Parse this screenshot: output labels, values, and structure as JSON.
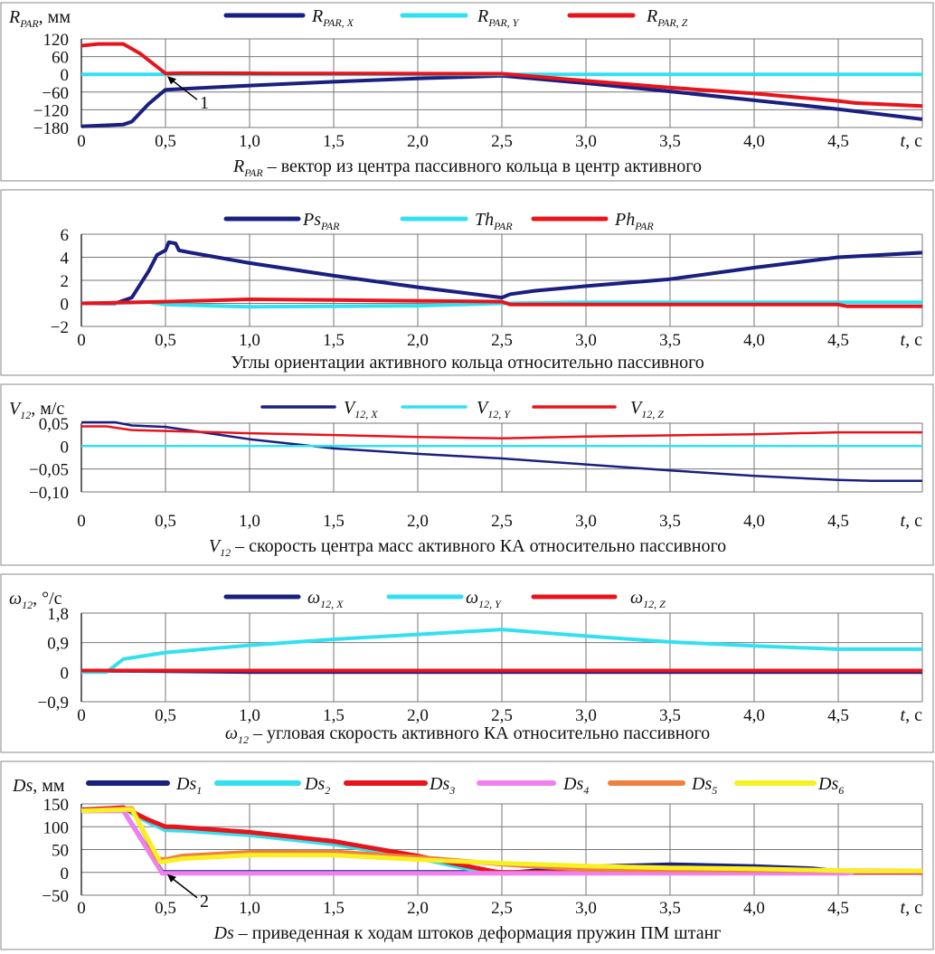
{
  "colors": {
    "navy": "#1a1f80",
    "cyan": "#33e0f0",
    "red": "#e8141c",
    "pink": "#f080f0",
    "orange": "#f08040",
    "yellow": "#f8f020"
  },
  "chart_data": [
    {
      "type": "line",
      "ylabel": {
        "main": "R",
        "sub": "PAR",
        "rest": ", мм"
      },
      "xlabel": {
        "main": "t",
        "rest": ", с"
      },
      "caption": {
        "main": "R",
        "sub": "PAR",
        "rest": " – вектор из центра пассивного кольца в центр активного"
      },
      "xlim": [
        0,
        5
      ],
      "ylim": [
        -180,
        120
      ],
      "yticks": [
        "120",
        "60",
        "0",
        "−60",
        "−120",
        "−180"
      ],
      "ytick_values": [
        120,
        60,
        0,
        -60,
        -120,
        -180
      ],
      "xticks": [
        "0",
        "0,5",
        "1,0",
        "1,5",
        "2,0",
        "2,5",
        "3,0",
        "3,5",
        "4,0",
        "4,5"
      ],
      "grid": true,
      "legend": "top",
      "annotation": {
        "text": "1",
        "x": 0.5,
        "y": 0
      },
      "series": [
        {
          "name": {
            "main": "R",
            "sub": "PAR, X"
          },
          "color": "#1a1f80",
          "points": [
            [
              0,
              -176
            ],
            [
              0.25,
              -170
            ],
            [
              0.3,
              -160
            ],
            [
              0.4,
              -100
            ],
            [
              0.5,
              -52
            ],
            [
              1,
              -38
            ],
            [
              1.5,
              -25
            ],
            [
              2,
              -14
            ],
            [
              2.5,
              -5
            ],
            [
              3,
              -30
            ],
            [
              3.5,
              -58
            ],
            [
              4,
              -88
            ],
            [
              4.5,
              -118
            ],
            [
              5,
              -152
            ]
          ]
        },
        {
          "name": {
            "main": "R",
            "sub": "PAR, Y"
          },
          "color": "#33e0f0",
          "points": [
            [
              0,
              0
            ],
            [
              5,
              0
            ]
          ]
        },
        {
          "name": {
            "main": "R",
            "sub": "PAR, Z"
          },
          "color": "#e8141c",
          "points": [
            [
              0,
              97
            ],
            [
              0.1,
              103
            ],
            [
              0.25,
              103
            ],
            [
              0.35,
              70
            ],
            [
              0.5,
              3
            ],
            [
              0.6,
              4
            ],
            [
              1.2,
              3
            ],
            [
              2.5,
              2
            ],
            [
              3,
              -22
            ],
            [
              3.5,
              -45
            ],
            [
              4,
              -65
            ],
            [
              4.5,
              -90
            ],
            [
              4.6,
              -97
            ],
            [
              5,
              -107
            ]
          ]
        }
      ]
    },
    {
      "type": "line",
      "ylabel": {
        "main": "",
        "rest": ""
      },
      "xlabel": {
        "main": "t",
        "rest": ", с"
      },
      "caption": {
        "main": "",
        "rest": "Углы ориентации активного кольца относительно пассивного"
      },
      "xlim": [
        0,
        5
      ],
      "ylim": [
        -2,
        6
      ],
      "yticks": [
        "6",
        "4",
        "2",
        "0",
        "−2"
      ],
      "ytick_values": [
        6,
        4,
        2,
        0,
        -2
      ],
      "xticks": [
        "0",
        "0,5",
        "1,0",
        "1,5",
        "2,0",
        "2,5",
        "3,0",
        "3,5",
        "4,0",
        "4,5"
      ],
      "grid": true,
      "legend": "top",
      "series": [
        {
          "name": {
            "main": "Ps",
            "sub": "PAR"
          },
          "color": "#1a1f80",
          "points": [
            [
              0,
              0
            ],
            [
              0.2,
              0
            ],
            [
              0.3,
              0.5
            ],
            [
              0.4,
              2.8
            ],
            [
              0.45,
              4.2
            ],
            [
              0.5,
              4.6
            ],
            [
              0.52,
              5.3
            ],
            [
              0.56,
              5.2
            ],
            [
              0.58,
              4.6
            ],
            [
              0.65,
              4.4
            ],
            [
              1,
              3.5
            ],
            [
              1.5,
              2.4
            ],
            [
              2,
              1.4
            ],
            [
              2.5,
              0.5
            ],
            [
              2.55,
              0.8
            ],
            [
              2.7,
              1.1
            ],
            [
              3,
              1.5
            ],
            [
              3.5,
              2.1
            ],
            [
              4,
              3.1
            ],
            [
              4.5,
              4.0
            ],
            [
              5,
              4.4
            ]
          ]
        },
        {
          "name": {
            "main": "Th",
            "sub": "PAR"
          },
          "color": "#33e0f0",
          "points": [
            [
              0,
              0
            ],
            [
              0.4,
              0.1
            ],
            [
              0.5,
              -0.1
            ],
            [
              1,
              -0.3
            ],
            [
              2,
              -0.2
            ],
            [
              2.5,
              0
            ],
            [
              3,
              0.1
            ],
            [
              4,
              0.1
            ],
            [
              5,
              0.1
            ]
          ]
        },
        {
          "name": {
            "main": "Ph",
            "sub": "PAR"
          },
          "color": "#e8141c",
          "points": [
            [
              0,
              0
            ],
            [
              0.5,
              0.15
            ],
            [
              1,
              0.35
            ],
            [
              1.5,
              0.3
            ],
            [
              2.5,
              0.15
            ],
            [
              2.55,
              -0.1
            ],
            [
              4.5,
              -0.1
            ],
            [
              4.55,
              -0.25
            ],
            [
              5,
              -0.25
            ]
          ]
        }
      ]
    },
    {
      "type": "line",
      "ylabel": {
        "main": "V",
        "sub": "12",
        "rest": ", м/с"
      },
      "xlabel": {
        "main": "t",
        "rest": ", с"
      },
      "caption": {
        "main": "V",
        "sub": "12",
        "rest": " – скорость центра масс активного КА относительно пассивного"
      },
      "xlim": [
        0,
        5
      ],
      "ylim": [
        -0.1,
        0.05
      ],
      "yticks": [
        "0,05",
        "0",
        "−0,05",
        "−0,10"
      ],
      "ytick_values": [
        0.05,
        0,
        -0.05,
        -0.1
      ],
      "xticks": [
        "0",
        "0,5",
        "1,0",
        "1,5",
        "2,0",
        "2,5",
        "3,0",
        "3,5",
        "4,0",
        "4,5"
      ],
      "grid": true,
      "legend": "top",
      "series": [
        {
          "name": {
            "main": "V",
            "sub": "12, X"
          },
          "color": "#1a1f80",
          "points": [
            [
              0,
              0.052
            ],
            [
              0.2,
              0.052
            ],
            [
              0.3,
              0.045
            ],
            [
              0.5,
              0.042
            ],
            [
              1,
              0.015
            ],
            [
              1.5,
              -0.005
            ],
            [
              2,
              -0.017
            ],
            [
              2.5,
              -0.027
            ],
            [
              3,
              -0.04
            ],
            [
              3.5,
              -0.053
            ],
            [
              4,
              -0.065
            ],
            [
              4.5,
              -0.074
            ],
            [
              4.7,
              -0.076
            ],
            [
              5,
              -0.076
            ]
          ]
        },
        {
          "name": {
            "main": "V",
            "sub": "12, Y"
          },
          "color": "#33e0f0",
          "points": [
            [
              0,
              0
            ],
            [
              5,
              0
            ]
          ]
        },
        {
          "name": {
            "main": "V",
            "sub": "12, Z"
          },
          "color": "#e8141c",
          "points": [
            [
              0,
              0.043
            ],
            [
              0.15,
              0.043
            ],
            [
              0.3,
              0.035
            ],
            [
              1,
              0.028
            ],
            [
              2,
              0.02
            ],
            [
              2.5,
              0.017
            ],
            [
              3,
              0.021
            ],
            [
              4,
              0.026
            ],
            [
              4.5,
              0.03
            ],
            [
              5,
              0.03
            ]
          ]
        }
      ]
    },
    {
      "type": "line",
      "ylabel": {
        "main": "ω",
        "sub": "12",
        "rest": ", °/с"
      },
      "xlabel": {
        "main": "t",
        "rest": ", с"
      },
      "caption": {
        "main": "ω",
        "sub": "12",
        "rest": " – угловая скорость активного КА относительно пассивного"
      },
      "xlim": [
        0,
        5
      ],
      "ylim": [
        -0.9,
        1.8
      ],
      "yticks": [
        "1,8",
        "0,9",
        "0",
        "−0,9"
      ],
      "ytick_values": [
        1.8,
        0.9,
        0,
        -0.9
      ],
      "xticks": [
        "0",
        "0,5",
        "1,0",
        "1,5",
        "2,0",
        "2,5",
        "3,0",
        "3,5",
        "4,0",
        "4,5"
      ],
      "grid": true,
      "legend": "top",
      "series": [
        {
          "name": {
            "main": "ω",
            "sub": "12, X"
          },
          "color": "#1a1f80",
          "points": [
            [
              0,
              0.05
            ],
            [
              0.5,
              0.03
            ],
            [
              1,
              0
            ],
            [
              5,
              0
            ]
          ]
        },
        {
          "name": {
            "main": "ω",
            "sub": "12, Y"
          },
          "color": "#33e0f0",
          "points": [
            [
              0,
              0
            ],
            [
              0.15,
              0
            ],
            [
              0.2,
              0.2
            ],
            [
              0.25,
              0.4
            ],
            [
              0.5,
              0.6
            ],
            [
              1,
              0.82
            ],
            [
              1.5,
              1.0
            ],
            [
              2,
              1.15
            ],
            [
              2.5,
              1.3
            ],
            [
              3,
              1.1
            ],
            [
              3.5,
              0.92
            ],
            [
              4,
              0.8
            ],
            [
              4.5,
              0.7
            ],
            [
              5,
              0.7
            ]
          ]
        },
        {
          "name": {
            "main": "ω",
            "sub": "12, Z"
          },
          "color": "#e8141c",
          "points": [
            [
              0,
              0.05
            ],
            [
              5,
              0.05
            ]
          ]
        }
      ]
    },
    {
      "type": "line",
      "ylabel": {
        "main": "Ds",
        "rest": ", мм"
      },
      "xlabel": {
        "main": "t",
        "rest": ", с"
      },
      "caption": {
        "main": "Ds",
        "rest": " – приведенная к ходам штоков деформация пружин ПМ  штанг"
      },
      "xlim": [
        0,
        5
      ],
      "ylim": [
        -50,
        150
      ],
      "yticks": [
        "150",
        "100",
        "50",
        "0",
        "−50"
      ],
      "ytick_values": [
        150,
        100,
        50,
        0,
        -50
      ],
      "xticks": [
        "0",
        "0,5",
        "1,0",
        "1,5",
        "2,0",
        "2,5",
        "3,0",
        "3,5",
        "4,0",
        "4,5"
      ],
      "grid": true,
      "legend": "top",
      "annotation": {
        "text": "2",
        "x": 0.5,
        "y": 0
      },
      "series": [
        {
          "name": {
            "main": "Ds",
            "sub": "1"
          },
          "color": "#1a1f80",
          "points": [
            [
              0,
              135
            ],
            [
              0.25,
              135
            ],
            [
              0.48,
              0
            ],
            [
              2.5,
              0
            ],
            [
              2.52,
              -2
            ],
            [
              3,
              12
            ],
            [
              3.5,
              17
            ],
            [
              4,
              13
            ],
            [
              4.35,
              8
            ],
            [
              4.55,
              0
            ],
            [
              5,
              0
            ]
          ]
        },
        {
          "name": {
            "main": "Ds",
            "sub": "2"
          },
          "color": "#33e0f0",
          "points": [
            [
              0,
              138
            ],
            [
              0.25,
              140
            ],
            [
              0.4,
              110
            ],
            [
              0.5,
              93
            ],
            [
              0.6,
              92
            ],
            [
              1,
              82
            ],
            [
              1.5,
              62
            ],
            [
              2,
              32
            ],
            [
              2.4,
              0
            ],
            [
              5,
              0
            ]
          ]
        },
        {
          "name": {
            "main": "Ds",
            "sub": "3"
          },
          "color": "#e8141c",
          "points": [
            [
              0,
              137
            ],
            [
              0.25,
              142
            ],
            [
              0.4,
              115
            ],
            [
              0.5,
              100
            ],
            [
              0.55,
              100
            ],
            [
              1,
              88
            ],
            [
              1.5,
              68
            ],
            [
              2,
              36
            ],
            [
              2.45,
              2
            ],
            [
              2.5,
              0
            ],
            [
              5,
              0
            ]
          ]
        },
        {
          "name": {
            "main": "Ds",
            "sub": "4"
          },
          "color": "#f080f0",
          "points": [
            [
              0,
              135
            ],
            [
              0.25,
              135
            ],
            [
              0.48,
              -2
            ],
            [
              4.55,
              -2
            ],
            [
              4.6,
              2
            ],
            [
              5,
              2
            ]
          ]
        },
        {
          "name": {
            "main": "Ds",
            "sub": "5"
          },
          "color": "#f08040",
          "points": [
            [
              0,
              135
            ],
            [
              0.3,
              140
            ],
            [
              0.45,
              30
            ],
            [
              0.5,
              28
            ],
            [
              0.6,
              36
            ],
            [
              1,
              44
            ],
            [
              1.5,
              45
            ],
            [
              2,
              33
            ],
            [
              2.5,
              18
            ],
            [
              3,
              6
            ],
            [
              5,
              3
            ]
          ]
        },
        {
          "name": {
            "main": "Ds",
            "sub": "6"
          },
          "color": "#f8f020",
          "points": [
            [
              0,
              135
            ],
            [
              0.3,
              138
            ],
            [
              0.47,
              22
            ],
            [
              0.5,
              24
            ],
            [
              0.6,
              30
            ],
            [
              1,
              38
            ],
            [
              1.5,
              38
            ],
            [
              2,
              28
            ],
            [
              2.5,
              20
            ],
            [
              3,
              14
            ],
            [
              3.5,
              10
            ],
            [
              4,
              8
            ],
            [
              4.6,
              3
            ],
            [
              5,
              3
            ]
          ]
        }
      ]
    }
  ]
}
